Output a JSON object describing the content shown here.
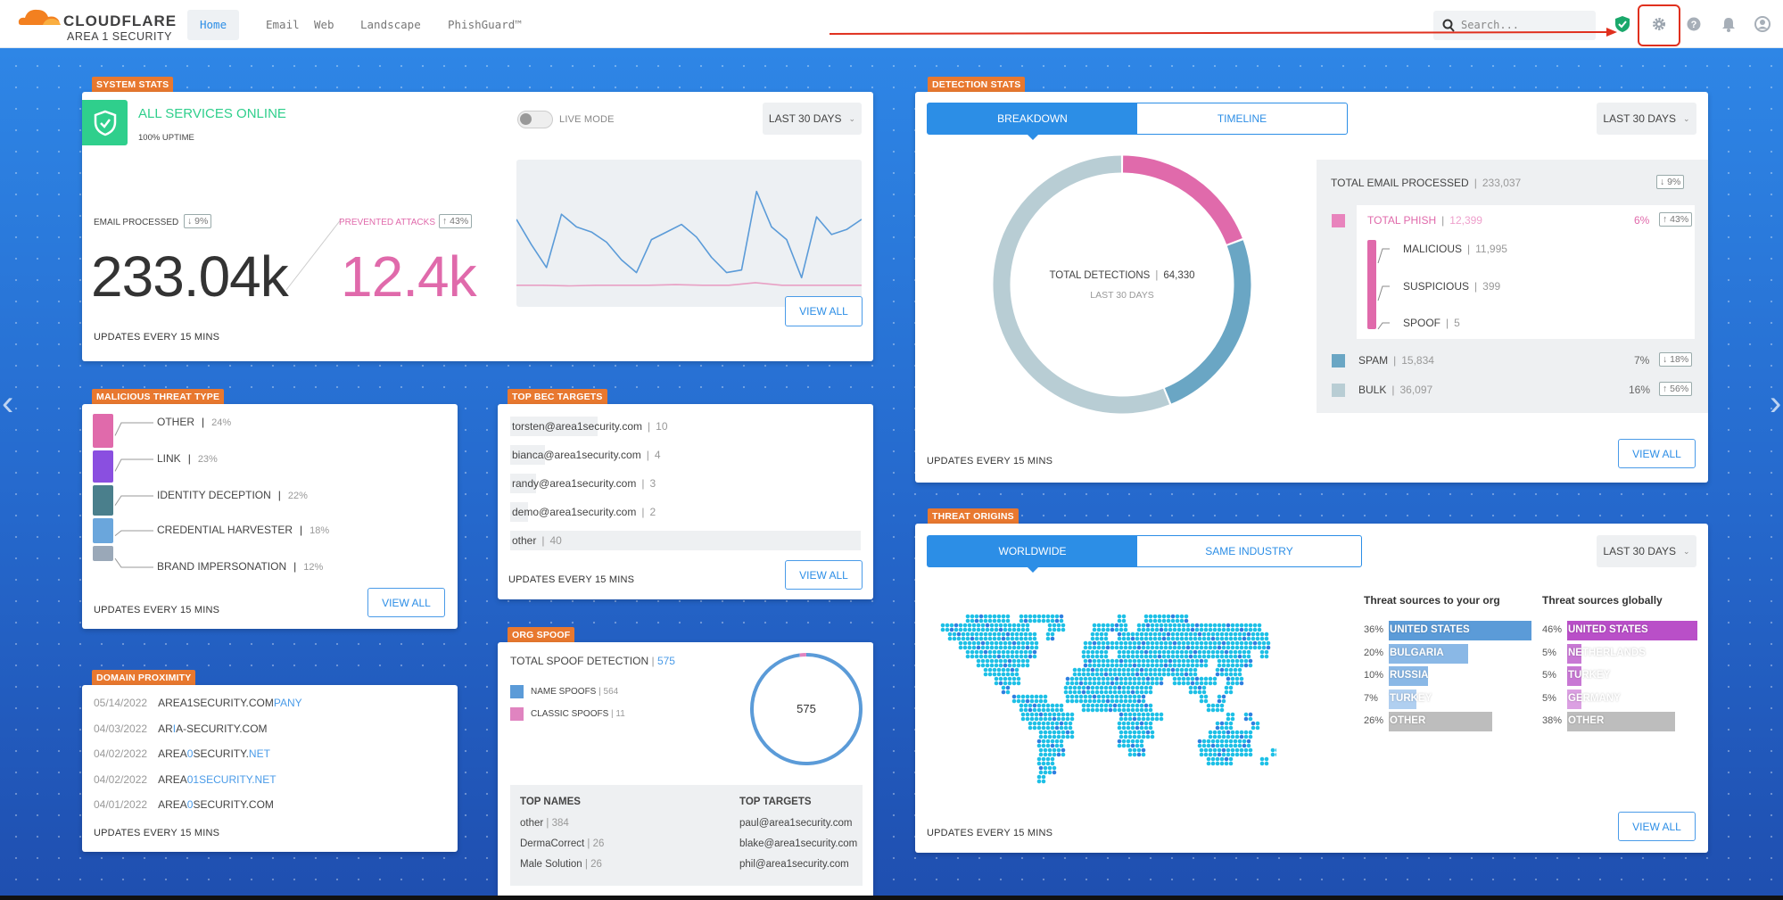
{
  "header": {
    "logo_word": "CLOUDFLARE",
    "logo_sub": "AREA 1 SECURITY",
    "nav": [
      {
        "label": "Home",
        "active": true
      },
      {
        "label": "Email"
      },
      {
        "label": "Web"
      },
      {
        "label": "Landscape"
      },
      {
        "label": "PhishGuard™"
      }
    ],
    "search_placeholder": "Search...",
    "icons": [
      "shield-check-icon",
      "gear-icon",
      "help-icon",
      "bell-icon",
      "user-icon"
    ]
  },
  "system_stats": {
    "tag": "SYSTEM STATS",
    "status": "ALL SERVICES ONLINE",
    "uptime": "100% UPTIME",
    "live_mode_label": "LIVE MODE",
    "live_mode_on": false,
    "range": "LAST 30 DAYS",
    "email_label": "EMAIL PROCESSED",
    "email_change": "↓ 9%",
    "email_value": "233.04k",
    "attacks_label": "PREVENTED ATTACKS",
    "attacks_change": "↑ 43%",
    "attacks_value": "12.4k",
    "updates": "UPDATES EVERY 15 MINS",
    "view_all": "VIEW ALL",
    "sparkline": {
      "email": [
        62,
        42,
        24,
        66,
        56,
        52,
        44,
        30,
        20,
        46,
        52,
        58,
        48,
        32,
        20,
        22,
        84,
        56,
        46,
        16,
        64,
        50,
        54,
        62
      ],
      "attacks": [
        10,
        10,
        9.5,
        10,
        10,
        10,
        10.5,
        10,
        10,
        12,
        10,
        10,
        10,
        10
      ]
    }
  },
  "detection_stats": {
    "tag": "DETECTION STATS",
    "tabs": [
      "BREAKDOWN",
      "TIMELINE"
    ],
    "active_tab": 0,
    "range": "LAST 30 DAYS",
    "total_label": "TOTAL DETECTIONS",
    "total_value": "64,330",
    "period": "LAST 30 DAYS",
    "processed_label": "TOTAL EMAIL PROCESSED",
    "processed_value": "233,037",
    "processed_change": "↓ 9%",
    "phish": {
      "label": "TOTAL PHISH",
      "value": "12,399",
      "pct": "6%",
      "change": "↑ 43%",
      "color": "#e06aab",
      "sub": [
        {
          "label": "MALICIOUS",
          "value": "11,995"
        },
        {
          "label": "SUSPICIOUS",
          "value": "399"
        },
        {
          "label": "SPOOF",
          "value": "5"
        }
      ]
    },
    "spam": {
      "label": "SPAM",
      "value": "15,834",
      "pct": "7%",
      "change": "↓ 18%",
      "color": "#6aa6c4"
    },
    "bulk": {
      "label": "BULK",
      "value": "36,097",
      "pct": "16%",
      "change": "↑ 56%",
      "color": "#b8cdd4"
    },
    "donut": [
      12399,
      15834,
      36097
    ],
    "updates": "UPDATES EVERY 15 MINS",
    "view_all": "VIEW ALL"
  },
  "malicious_threat_type": {
    "tag": "MALICIOUS THREAT TYPE",
    "items": [
      {
        "label": "OTHER",
        "pct": 24,
        "pct_text": "24%",
        "color": "#e06aab"
      },
      {
        "label": "LINK",
        "pct": 23,
        "pct_text": "23%",
        "color": "#8a4fe0"
      },
      {
        "label": "IDENTITY DECEPTION",
        "pct": 22,
        "pct_text": "22%",
        "color": "#4a7f8c"
      },
      {
        "label": "CREDENTIAL HARVESTER",
        "pct": 18,
        "pct_text": "18%",
        "color": "#6aa6dc"
      },
      {
        "label": "BRAND IMPERSONATION",
        "pct": 12,
        "pct_text": "12%",
        "color": "#9aa8b8"
      }
    ],
    "updates": "UPDATES EVERY 15 MINS",
    "view_all": "VIEW ALL"
  },
  "top_bec_targets": {
    "tag": "TOP BEC TARGETS",
    "items": [
      {
        "email": "torsten@area1security.com",
        "count": "10",
        "n": 10
      },
      {
        "email": "bianca@area1security.com",
        "count": "4",
        "n": 4
      },
      {
        "email": "randy@area1security.com",
        "count": "3",
        "n": 3
      },
      {
        "email": "demo@area1security.com",
        "count": "2",
        "n": 2
      },
      {
        "email": "other",
        "count": "40",
        "n": 40
      }
    ],
    "updates": "UPDATES EVERY 15 MINS",
    "view_all": "VIEW ALL"
  },
  "domain_proximity": {
    "tag": "DOMAIN PROXIMITY",
    "items": [
      {
        "date": "05/14/2022",
        "parts": [
          {
            "t": "AREA1SECURITY.COM"
          },
          {
            "t": "PANY",
            "hl": true
          }
        ]
      },
      {
        "date": "04/03/2022",
        "parts": [
          {
            "t": "AR"
          },
          {
            "t": "I",
            "hl": true
          },
          {
            "t": "A-SECURITY.COM"
          }
        ]
      },
      {
        "date": "04/02/2022",
        "parts": [
          {
            "t": "AREA"
          },
          {
            "t": "0",
            "hl": true
          },
          {
            "t": "SECURITY."
          },
          {
            "t": "NET",
            "hl": true
          }
        ]
      },
      {
        "date": "04/02/2022",
        "parts": [
          {
            "t": "AREA"
          },
          {
            "t": "01SECURITY.NET",
            "hl": true
          }
        ]
      },
      {
        "date": "04/01/2022",
        "parts": [
          {
            "t": "AREA"
          },
          {
            "t": "0",
            "hl": true
          },
          {
            "t": "SECURITY.COM"
          }
        ]
      }
    ],
    "updates": "UPDATES EVERY 15 MINS"
  },
  "org_spoof": {
    "tag": "ORG SPOOF",
    "title": "TOTAL SPOOF DETECTION",
    "total": "575",
    "legend": [
      {
        "label": "NAME SPOOFS",
        "value": "564",
        "n": 564,
        "color": "#5b9bd8"
      },
      {
        "label": "CLASSIC SPOOFS",
        "value": "11",
        "n": 11,
        "color": "#e084c0"
      }
    ],
    "center": "575",
    "top_names_label": "TOP NAMES",
    "top_names": [
      {
        "name": "other",
        "count": "384"
      },
      {
        "name": "DermaCorrect",
        "count": "26"
      },
      {
        "name": "Male Solution",
        "count": "26"
      }
    ],
    "top_targets_label": "TOP TARGETS",
    "top_targets": [
      "paul@area1security.com",
      "blake@area1security.com",
      "phil@area1security.com"
    ]
  },
  "threat_origins": {
    "tag": "THREAT ORIGINS",
    "tabs": [
      "WORLDWIDE",
      "SAME INDUSTRY"
    ],
    "active_tab": 0,
    "range": "LAST 30 DAYS",
    "org_title": "Threat sources to your org",
    "global_title": "Threat sources globally",
    "org": [
      {
        "pct": 36,
        "pct_text": "36%",
        "country": "UNITED STATES",
        "color": "#5b9bd8"
      },
      {
        "pct": 20,
        "pct_text": "20%",
        "country": "BULGARIA",
        "color": "#8ab8e6"
      },
      {
        "pct": 10,
        "pct_text": "10%",
        "country": "RUSSIA",
        "color": "#8ab8e6"
      },
      {
        "pct": 7,
        "pct_text": "7%",
        "country": "TURKEY",
        "color": "#b0cff0"
      },
      {
        "pct": 26,
        "pct_text": "26%",
        "country": "OTHER",
        "color": "#bdbdbd"
      }
    ],
    "global": [
      {
        "pct": 46,
        "pct_text": "46%",
        "country": "UNITED STATES",
        "color": "#b94fc8"
      },
      {
        "pct": 5,
        "pct_text": "5%",
        "country": "NETHERLANDS",
        "color": "#c878d4"
      },
      {
        "pct": 5,
        "pct_text": "5%",
        "country": "TURKEY",
        "color": "#c878d4"
      },
      {
        "pct": 5,
        "pct_text": "5%",
        "country": "GERMANY",
        "color": "#dba0e2"
      },
      {
        "pct": 38,
        "pct_text": "38%",
        "country": "OTHER",
        "color": "#bdbdbd"
      }
    ],
    "updates": "UPDATES EVERY 15 MINS",
    "view_all": "VIEW ALL"
  },
  "colors": {
    "accent": "#2c8ee6",
    "tag": "#e8782f",
    "online": "#2fcf8c",
    "phish": "#e06aab",
    "annotation": "#e0301e"
  }
}
